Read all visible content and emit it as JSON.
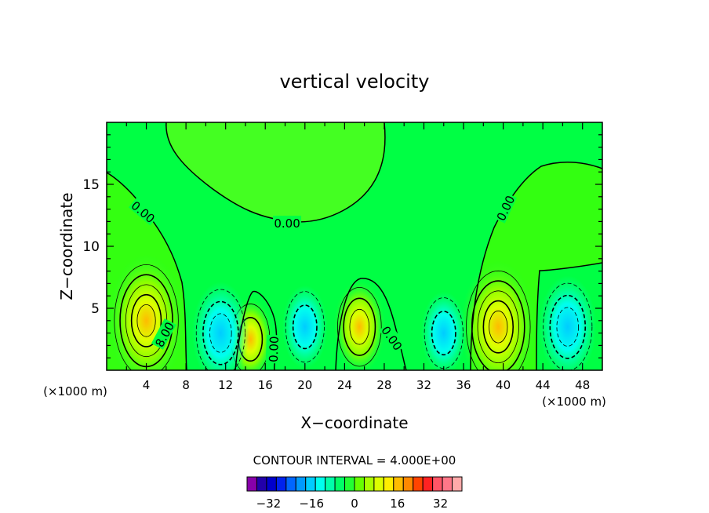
{
  "chart_data": {
    "type": "contour",
    "title": "vertical velocity",
    "xlabel": "X−coordinate",
    "ylabel": "Z−coordinate",
    "x_unit_left": "(×1000 m)",
    "x_unit_right": "(×1000 m)",
    "xlim": [
      0,
      50
    ],
    "ylim": [
      0,
      20
    ],
    "x_ticks": [
      4,
      8,
      12,
      16,
      20,
      24,
      28,
      32,
      36,
      40,
      44,
      48
    ],
    "y_ticks": [
      5,
      10,
      15
    ],
    "contour_interval_text": "CONTOUR INTERVAL = 4.000E+00",
    "contour_interval": 4,
    "contour_labels": [
      {
        "text": "0.00",
        "x": 3.7,
        "z": 12.8,
        "rot": 40
      },
      {
        "text": "0.00",
        "x": 18.2,
        "z": 11.9,
        "rot": 0
      },
      {
        "text": "0.00",
        "x": 40.2,
        "z": 13.1,
        "rot": -65
      },
      {
        "text": "8.00",
        "x": 5.8,
        "z": 2.9,
        "rot": -62
      },
      {
        "text": "0.00",
        "x": 16.8,
        "z": 1.7,
        "rot": -88
      },
      {
        "text": "0.00",
        "x": 28.8,
        "z": 2.6,
        "rot": 55
      }
    ],
    "cells": [
      {
        "x": 4,
        "z": 4,
        "value": 20,
        "sign": "positive"
      },
      {
        "x": 14.5,
        "z": 2.5,
        "value": 10,
        "sign": "positive"
      },
      {
        "x": 25.5,
        "z": 3.5,
        "value": 12,
        "sign": "positive"
      },
      {
        "x": 39.5,
        "z": 3.5,
        "value": 20,
        "sign": "positive"
      },
      {
        "x": 11.5,
        "z": 3,
        "value": -14,
        "sign": "negative"
      },
      {
        "x": 20,
        "z": 3.5,
        "value": -10,
        "sign": "negative"
      },
      {
        "x": 34,
        "z": 3,
        "value": -10,
        "sign": "negative"
      },
      {
        "x": 46.5,
        "z": 3.5,
        "value": -14,
        "sign": "negative"
      }
    ],
    "colorbar": {
      "colors": [
        "#8800aa",
        "#2200aa",
        "#0000cc",
        "#0022ee",
        "#0066ff",
        "#0099ff",
        "#00ccff",
        "#00ffee",
        "#00ffaa",
        "#00ff66",
        "#22ff33",
        "#66ff00",
        "#aaff00",
        "#ddff00",
        "#ffee00",
        "#ffbb00",
        "#ff8800",
        "#ff4400",
        "#ff2222",
        "#ff5566",
        "#ff7788",
        "#ffaaaa"
      ],
      "tick_labels": [
        "−32",
        "−16",
        "0",
        "16",
        "32"
      ],
      "tick_values": [
        -32,
        -16,
        0,
        16,
        32
      ],
      "range": [
        -40,
        40
      ]
    }
  }
}
